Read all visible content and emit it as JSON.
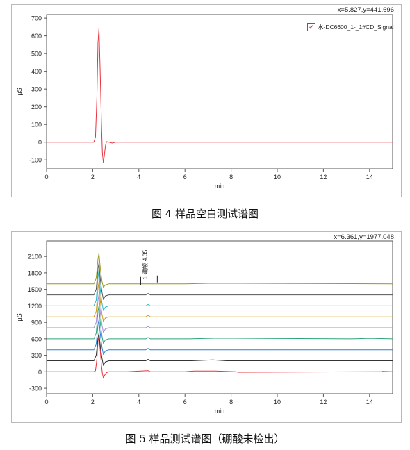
{
  "chart_data": [
    {
      "type": "line",
      "readout": "x=5.827,y=441.696",
      "legend": "水-DC6600_1-_1#CD_Signal",
      "xlabel": "min",
      "ylabel": "µS",
      "xlim": [
        0,
        15
      ],
      "ylim": [
        -150,
        720
      ],
      "xticks": [
        0,
        2,
        4,
        6,
        8,
        10,
        12,
        14
      ],
      "yticks": [
        -100,
        0,
        100,
        200,
        300,
        400,
        500,
        600,
        700
      ],
      "grid": false,
      "series": [
        {
          "color": "#e8313d",
          "x": [
            0,
            2.05,
            2.12,
            2.18,
            2.23,
            2.27,
            2.32,
            2.38,
            2.42,
            2.46,
            2.5,
            2.55,
            2.6,
            2.7,
            2.85,
            3.0,
            15
          ],
          "y": [
            0,
            0,
            30,
            250,
            560,
            645,
            420,
            100,
            -60,
            -115,
            -80,
            -20,
            3,
            0,
            -5,
            0,
            0
          ]
        }
      ]
    },
    {
      "type": "line",
      "readout": "x=6.361,y=1977.048",
      "xlabel": "min",
      "ylabel": "µS",
      "xlim": [
        0,
        15
      ],
      "ylim": [
        -400,
        2380
      ],
      "xticks": [
        0,
        2,
        4,
        6,
        8,
        10,
        12,
        14
      ],
      "yticks": [
        -300,
        0,
        300,
        600,
        900,
        1200,
        1500,
        1800,
        2100
      ],
      "grid": false,
      "annotations": [
        "1 硼酸 4.35"
      ],
      "series": [
        {
          "color": "#e8313d",
          "baseline": 0,
          "x": [
            0,
            2.05,
            2.12,
            2.18,
            2.23,
            2.27,
            2.32,
            2.38,
            2.42,
            2.46,
            2.52,
            2.6,
            2.7,
            3.5,
            4.3,
            4.4,
            4.5,
            6.0,
            6.4,
            7.3,
            8.2,
            8.3,
            14.5,
            14.55,
            15
          ],
          "y": [
            0,
            0,
            20,
            230,
            560,
            630,
            430,
            110,
            -30,
            -110,
            -60,
            -15,
            0,
            0,
            18,
            20,
            0,
            0,
            15,
            15,
            0,
            -8,
            0,
            8,
            0
          ]
        },
        {
          "color": "#333333",
          "baseline": 200,
          "x": [
            0,
            2.05,
            2.15,
            2.23,
            2.27,
            2.33,
            2.4,
            2.46,
            2.55,
            2.7,
            4.3,
            4.4,
            4.5,
            6.3,
            7.2,
            7.8,
            15
          ],
          "y": [
            200,
            200,
            300,
            620,
            700,
            460,
            250,
            120,
            180,
            200,
            200,
            225,
            200,
            200,
            215,
            200,
            200
          ]
        },
        {
          "color": "#2f7fd1",
          "baseline": 400,
          "x": [
            0,
            2.05,
            2.15,
            2.23,
            2.27,
            2.33,
            2.4,
            2.46,
            2.55,
            2.7,
            4.3,
            4.4,
            4.5,
            15
          ],
          "y": [
            400,
            400,
            500,
            860,
            950,
            680,
            450,
            320,
            380,
            400,
            400,
            425,
            400,
            400
          ]
        },
        {
          "color": "#2ea37a",
          "baseline": 600,
          "x": [
            0,
            2.05,
            2.15,
            2.23,
            2.27,
            2.33,
            2.4,
            2.46,
            2.55,
            2.7,
            4.3,
            4.4,
            4.5,
            6.2,
            7.4,
            13.2,
            14.0,
            15
          ],
          "y": [
            600,
            600,
            700,
            1100,
            1200,
            880,
            650,
            520,
            580,
            600,
            600,
            625,
            600,
            600,
            612,
            600,
            610,
            600
          ]
        },
        {
          "color": "#a98bd6",
          "baseline": 800,
          "x": [
            0,
            2.05,
            2.15,
            2.23,
            2.27,
            2.33,
            2.4,
            2.46,
            2.55,
            2.7,
            4.3,
            4.4,
            4.5,
            15
          ],
          "y": [
            800,
            800,
            900,
            1300,
            1410,
            1080,
            850,
            720,
            780,
            800,
            800,
            825,
            800,
            800
          ]
        },
        {
          "color": "#c99a12",
          "baseline": 1000,
          "x": [
            0,
            2.05,
            2.15,
            2.23,
            2.27,
            2.33,
            2.4,
            2.46,
            2.55,
            2.7,
            4.3,
            4.4,
            4.5,
            15
          ],
          "y": [
            1000,
            1000,
            1100,
            1520,
            1640,
            1280,
            1050,
            920,
            980,
            1000,
            1000,
            1025,
            1000,
            1000
          ]
        },
        {
          "color": "#26b5c7",
          "baseline": 1200,
          "x": [
            0,
            2.05,
            2.15,
            2.23,
            2.27,
            2.33,
            2.4,
            2.46,
            2.55,
            2.7,
            4.3,
            4.4,
            4.5,
            15
          ],
          "y": [
            1200,
            1200,
            1300,
            1720,
            1850,
            1480,
            1250,
            1120,
            1180,
            1200,
            1200,
            1225,
            1200,
            1200
          ]
        },
        {
          "color": "#555555",
          "baseline": 1400,
          "x": [
            0,
            2.05,
            2.15,
            2.23,
            2.27,
            2.33,
            2.4,
            2.46,
            2.55,
            2.7,
            4.3,
            4.4,
            4.5,
            15
          ],
          "y": [
            1400,
            1400,
            1500,
            1880,
            1980,
            1680,
            1450,
            1320,
            1380,
            1400,
            1400,
            1425,
            1400,
            1400
          ]
        },
        {
          "color": "#9a9a1a",
          "baseline": 1600,
          "x": [
            0,
            2.05,
            2.15,
            2.23,
            2.27,
            2.33,
            2.4,
            2.46,
            2.55,
            2.7,
            6.0,
            7.2,
            15
          ],
          "y": [
            1600,
            1600,
            1700,
            2050,
            2160,
            1880,
            1650,
            1540,
            1580,
            1600,
            1600,
            1610,
            1600
          ]
        }
      ]
    }
  ],
  "captions": [
    "图 4 样品空白测试谱图",
    "图 5  样品测试谱图（硼酸未检出）"
  ]
}
